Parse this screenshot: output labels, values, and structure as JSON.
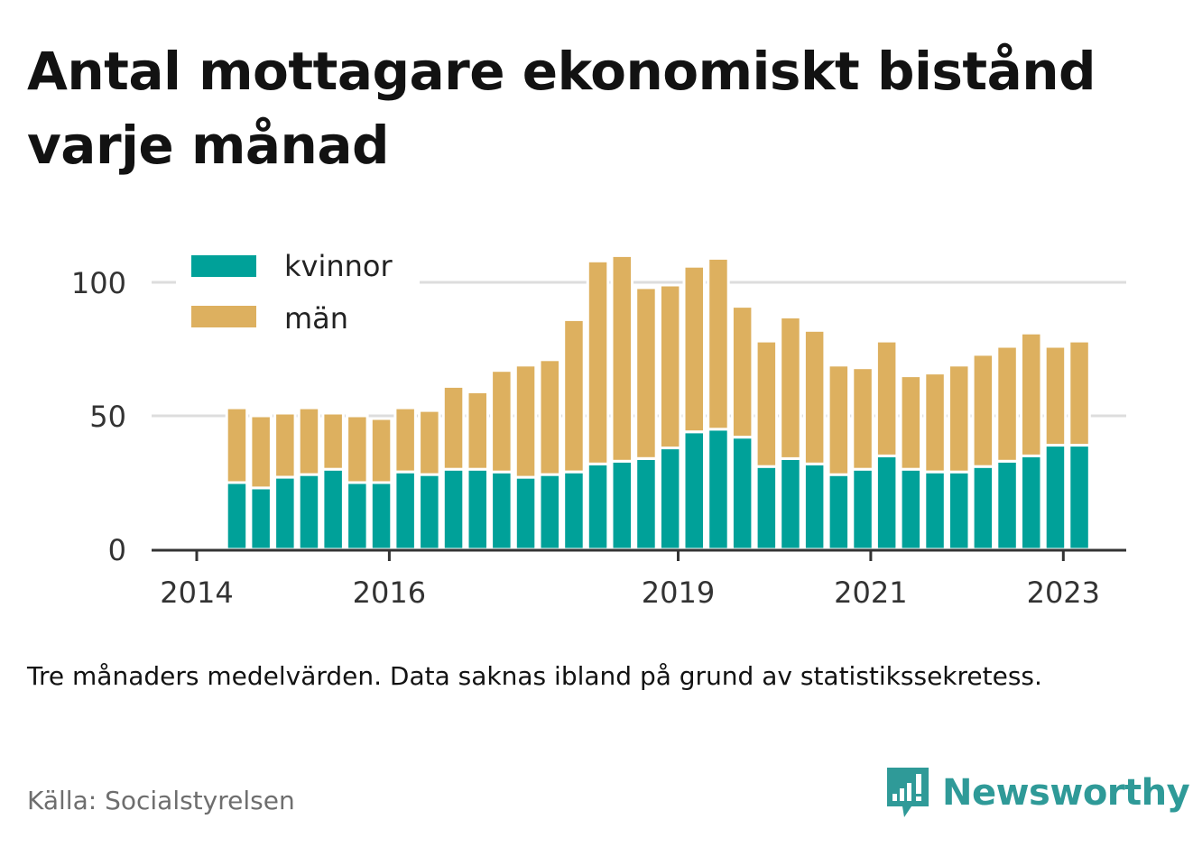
{
  "title": "Antal mottagare ekonomiskt bistånd varje månad",
  "note": "Tre månaders medelvärden. Data saknas ibland på grund av statistikssekretess.",
  "source": "Källa: Socialstyrelsen",
  "brand": {
    "name": "Newsworthy",
    "color": "#2f9a98"
  },
  "colors": {
    "kvinnor": "#00a199",
    "man": "#ddb05f",
    "axis": "#333333",
    "grid": "#dddddd"
  },
  "chart_data": {
    "type": "bar",
    "stacked": true,
    "x_ticks": [
      "2014",
      "2016",
      "2019",
      "2021",
      "2023"
    ],
    "y_ticks": [
      "0",
      "50",
      "100"
    ],
    "ylim": [
      0,
      110
    ],
    "legend_position": "top-left",
    "grid": true,
    "categories": [
      "2014-06",
      "2014-09",
      "2014-12",
      "2015-03",
      "2015-06",
      "2015-09",
      "2015-12",
      "2016-03",
      "2016-06",
      "2016-09",
      "2016-12",
      "2017-03",
      "2017-06",
      "2017-09",
      "2017-12",
      "2018-03",
      "2018-06",
      "2018-09",
      "2018-12",
      "2019-03",
      "2019-06",
      "2019-09",
      "2019-12",
      "2020-03",
      "2020-06",
      "2020-09",
      "2020-12",
      "2021-03",
      "2021-06",
      "2021-09",
      "2021-12",
      "2022-03",
      "2022-06",
      "2022-09",
      "2022-12",
      "2023-03"
    ],
    "series": [
      {
        "name": "kvinnor",
        "values": [
          25,
          23,
          27,
          28,
          30,
          25,
          25,
          29,
          28,
          30,
          30,
          29,
          27,
          28,
          29,
          32,
          33,
          34,
          38,
          44,
          45,
          42,
          31,
          34,
          32,
          28,
          30,
          35,
          30,
          29,
          29,
          31,
          33,
          35,
          39,
          39
        ]
      },
      {
        "name": "män",
        "values": [
          28,
          27,
          24,
          25,
          21,
          25,
          24,
          24,
          24,
          31,
          29,
          38,
          42,
          43,
          57,
          76,
          77,
          64,
          61,
          62,
          64,
          49,
          47,
          53,
          50,
          41,
          38,
          43,
          35,
          37,
          40,
          42,
          43,
          46,
          37,
          39
        ]
      }
    ]
  }
}
